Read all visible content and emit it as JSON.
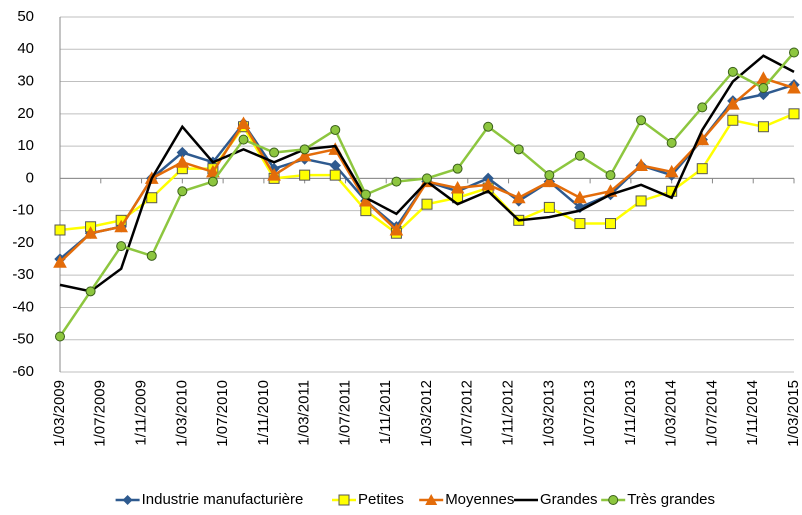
{
  "chart_data": {
    "type": "line",
    "x": [
      "1/03/2009",
      "1/06/2009",
      "1/09/2009",
      "1/12/2009",
      "1/03/2010",
      "1/06/2010",
      "1/09/2010",
      "1/12/2010",
      "1/03/2011",
      "1/06/2011",
      "1/09/2011",
      "1/12/2011",
      "1/03/2012",
      "1/06/2012",
      "1/09/2012",
      "1/12/2012",
      "1/03/2013",
      "1/06/2013",
      "1/09/2013",
      "1/12/2013",
      "1/03/2014",
      "1/06/2014",
      "1/09/2014",
      "1/12/2014",
      "1/03/2015"
    ],
    "xlim": [
      "1/03/2009",
      "1/03/2015"
    ],
    "xticks": [
      "1/03/2009",
      "1/07/2009",
      "1/11/2009",
      "1/03/2010",
      "1/07/2010",
      "1/11/2010",
      "1/03/2011",
      "1/07/2011",
      "1/11/2011",
      "1/03/2012",
      "1/07/2012",
      "1/11/2012",
      "1/03/2013",
      "1/07/2013",
      "1/11/2013",
      "1/03/2014",
      "1/07/2014",
      "1/11/2014",
      "1/03/2015"
    ],
    "ylim": [
      -60,
      50
    ],
    "yticks": [
      -60,
      -50,
      -40,
      -30,
      -20,
      -10,
      0,
      10,
      20,
      30,
      40,
      50
    ],
    "grid": true,
    "legend": "bottom",
    "series": [
      {
        "name": "Industrie manufacturière",
        "color": "#2e5a8f",
        "marker": "diamond",
        "values": [
          -25,
          -17,
          -15,
          0,
          8,
          5,
          17,
          3,
          6,
          4,
          -7,
          -15,
          -1,
          -4,
          0,
          -7,
          -1,
          -9,
          -5,
          4,
          1,
          12,
          24,
          26,
          29
        ]
      },
      {
        "name": "Petites",
        "color": "#ffff00",
        "marker": "square",
        "values": [
          -16,
          -15,
          -13,
          -6,
          3,
          3,
          16,
          0,
          1,
          1,
          -10,
          -17,
          -8,
          -6,
          -3,
          -13,
          -9,
          -14,
          -14,
          -7,
          -4,
          3,
          18,
          16,
          20
        ]
      },
      {
        "name": "Moyennes",
        "color": "#e36c0a",
        "marker": "triangle",
        "values": [
          -26,
          -17,
          -15,
          0,
          5,
          2,
          17,
          1,
          7,
          9,
          -7,
          -16,
          -1,
          -3,
          -2,
          -6,
          -1,
          -6,
          -4,
          4,
          2,
          12,
          23,
          31,
          28
        ]
      },
      {
        "name": "Grandes",
        "color": "#000000",
        "marker": "none",
        "values": [
          -33,
          -35,
          -28,
          0,
          16,
          5,
          9,
          5,
          9,
          10,
          -6,
          -11,
          -1,
          -8,
          -4,
          -13,
          -12,
          -10,
          -5,
          -2,
          -6,
          15,
          30,
          38,
          33
        ]
      },
      {
        "name": "Très grandes",
        "color": "#8dc63f",
        "marker": "circle",
        "values": [
          -49,
          -35,
          -21,
          -24,
          -4,
          -1,
          12,
          8,
          9,
          15,
          -5,
          -1,
          0,
          3,
          16,
          9,
          1,
          7,
          1,
          18,
          11,
          22,
          33,
          28,
          39
        ]
      }
    ]
  }
}
